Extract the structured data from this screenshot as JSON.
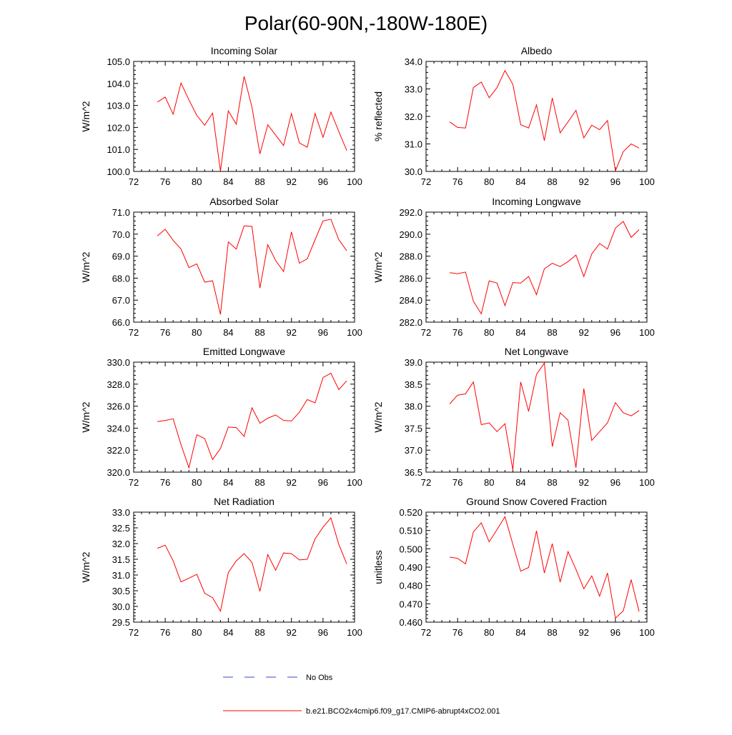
{
  "figure_title": "Polar(60-90N,-180W-180E)",
  "colors": {
    "series": "#ff0000",
    "obs": "#3344cc",
    "axis": "#000000"
  },
  "legend": [
    {
      "label": "No Obs",
      "style": "dashed",
      "color": "#3344cc"
    },
    {
      "label": "b.e21.BCO2x4cmip6.f09_g17.CMIP6-abrupt4xCO2.001",
      "style": "solid",
      "color": "#ff0000"
    }
  ],
  "chart_data": [
    {
      "type": "line",
      "title": "Incoming Solar",
      "ylabel": "W/m^2",
      "xlim": [
        72,
        100
      ],
      "ylim": [
        100,
        105
      ],
      "xticks": [
        72,
        76,
        80,
        84,
        88,
        92,
        96,
        100
      ],
      "yticks": [
        "100.0",
        "101.0",
        "102.0",
        "103.0",
        "104.0",
        "105.0"
      ],
      "x": [
        75,
        76,
        77,
        78,
        79,
        80,
        81,
        82,
        83,
        84,
        85,
        86,
        87,
        88,
        89,
        90,
        91,
        92,
        93,
        94,
        95,
        96,
        97,
        98,
        99
      ],
      "series": [
        {
          "name": "b.e21.BCO2x4cmip6.f09_g17.CMIP6-abrupt4xCO2.001",
          "values": [
            103.15,
            103.38,
            102.6,
            104.02,
            103.25,
            102.55,
            102.1,
            102.65,
            100.02,
            102.75,
            102.15,
            104.32,
            102.92,
            100.8,
            102.12,
            101.65,
            101.18,
            102.63,
            101.3,
            101.1,
            102.63,
            101.55,
            102.7,
            101.82,
            100.95
          ]
        }
      ]
    },
    {
      "type": "line",
      "title": "Albedo",
      "ylabel": "% reflected",
      "xlim": [
        72,
        100
      ],
      "ylim": [
        30,
        34
      ],
      "xticks": [
        72,
        76,
        80,
        84,
        88,
        92,
        96,
        100
      ],
      "yticks": [
        "30.0",
        "31.0",
        "32.0",
        "33.0",
        "34.0"
      ],
      "x": [
        75,
        76,
        77,
        78,
        79,
        80,
        81,
        82,
        83,
        84,
        85,
        86,
        87,
        88,
        89,
        90,
        91,
        92,
        93,
        94,
        95,
        96,
        97,
        98,
        99
      ],
      "series": [
        {
          "name": "b.e21.BCO2x4cmip6.f09_g17.CMIP6-abrupt4xCO2.001",
          "values": [
            31.8,
            31.6,
            31.58,
            33.05,
            33.25,
            32.68,
            33.05,
            33.67,
            33.17,
            31.7,
            31.58,
            32.42,
            31.12,
            32.67,
            31.4,
            31.8,
            32.22,
            31.22,
            31.68,
            31.52,
            31.85,
            30.02,
            30.72,
            31.0,
            30.85
          ]
        }
      ]
    },
    {
      "type": "line",
      "title": "Absorbed Solar",
      "ylabel": "W/m^2",
      "xlim": [
        72,
        100
      ],
      "ylim": [
        66,
        71
      ],
      "xticks": [
        72,
        76,
        80,
        84,
        88,
        92,
        96,
        100
      ],
      "yticks": [
        "66.0",
        "67.0",
        "68.0",
        "69.0",
        "70.0",
        "71.0"
      ],
      "x": [
        75,
        76,
        77,
        78,
        79,
        80,
        81,
        82,
        83,
        84,
        85,
        86,
        87,
        88,
        89,
        90,
        91,
        92,
        93,
        94,
        95,
        96,
        97,
        98,
        99
      ],
      "series": [
        {
          "name": "b.e21.BCO2x4cmip6.f09_g17.CMIP6-abrupt4xCO2.001",
          "values": [
            69.92,
            70.22,
            69.72,
            69.32,
            68.48,
            68.65,
            67.82,
            67.88,
            66.35,
            69.65,
            69.32,
            70.38,
            70.35,
            67.55,
            69.52,
            68.8,
            68.3,
            70.1,
            68.68,
            68.88,
            69.75,
            70.6,
            70.68,
            69.75,
            69.25
          ]
        }
      ]
    },
    {
      "type": "line",
      "title": "Incoming Longwave",
      "ylabel": "W/m^2",
      "xlim": [
        72,
        100
      ],
      "ylim": [
        282,
        292
      ],
      "xticks": [
        72,
        76,
        80,
        84,
        88,
        92,
        96,
        100
      ],
      "yticks": [
        "282.0",
        "284.0",
        "286.0",
        "288.0",
        "290.0",
        "292.0"
      ],
      "x": [
        75,
        76,
        77,
        78,
        79,
        80,
        81,
        82,
        83,
        84,
        85,
        86,
        87,
        88,
        89,
        90,
        91,
        92,
        93,
        94,
        95,
        96,
        97,
        98,
        99
      ],
      "series": [
        {
          "name": "b.e21.BCO2x4cmip6.f09_g17.CMIP6-abrupt4xCO2.001",
          "values": [
            286.5,
            286.4,
            286.55,
            283.9,
            282.75,
            285.75,
            285.55,
            283.5,
            285.6,
            285.55,
            286.15,
            284.5,
            286.85,
            287.35,
            287.05,
            287.5,
            288.1,
            286.15,
            288.2,
            289.15,
            288.65,
            290.55,
            291.15,
            289.7,
            290.4
          ]
        }
      ]
    },
    {
      "type": "line",
      "title": "Emitted Longwave",
      "ylabel": "W/m^2",
      "xlim": [
        72,
        100
      ],
      "ylim": [
        320,
        330
      ],
      "xticks": [
        72,
        76,
        80,
        84,
        88,
        92,
        96,
        100
      ],
      "yticks": [
        "320.0",
        "322.0",
        "324.0",
        "326.0",
        "328.0",
        "330.0"
      ],
      "x": [
        75,
        76,
        77,
        78,
        79,
        80,
        81,
        82,
        83,
        84,
        85,
        86,
        87,
        88,
        89,
        90,
        91,
        92,
        93,
        94,
        95,
        96,
        97,
        98,
        99
      ],
      "series": [
        {
          "name": "b.e21.BCO2x4cmip6.f09_g17.CMIP6-abrupt4xCO2.001",
          "values": [
            324.6,
            324.7,
            324.85,
            322.5,
            320.4,
            323.4,
            323.05,
            321.15,
            322.15,
            324.1,
            324.05,
            323.25,
            325.85,
            324.45,
            324.9,
            325.2,
            324.7,
            324.65,
            325.45,
            326.6,
            326.3,
            328.6,
            329.0,
            327.5,
            328.3
          ]
        }
      ]
    },
    {
      "type": "line",
      "title": "Net Longwave",
      "ylabel": "W/m^2",
      "xlim": [
        72,
        100
      ],
      "ylim": [
        36.5,
        39.0
      ],
      "xticks": [
        72,
        76,
        80,
        84,
        88,
        92,
        96,
        100
      ],
      "yticks": [
        "36.5",
        "37.0",
        "37.5",
        "38.0",
        "38.5",
        "39.0"
      ],
      "x": [
        75,
        76,
        77,
        78,
        79,
        80,
        81,
        82,
        83,
        84,
        85,
        86,
        87,
        88,
        89,
        90,
        91,
        92,
        93,
        94,
        95,
        96,
        97,
        98,
        99
      ],
      "series": [
        {
          "name": "b.e21.BCO2x4cmip6.f09_g17.CMIP6-abrupt4xCO2.001",
          "values": [
            38.05,
            38.25,
            38.28,
            38.55,
            37.58,
            37.62,
            37.42,
            37.6,
            36.55,
            38.55,
            37.88,
            38.72,
            38.98,
            37.08,
            37.85,
            37.68,
            36.6,
            38.4,
            37.22,
            37.42,
            37.62,
            38.08,
            37.85,
            37.78,
            37.9
          ]
        }
      ]
    },
    {
      "type": "line",
      "title": "Net Radiation",
      "ylabel": "W/m^2",
      "xlim": [
        72,
        100
      ],
      "ylim": [
        29.5,
        33.0
      ],
      "xticks": [
        72,
        76,
        80,
        84,
        88,
        92,
        96,
        100
      ],
      "yticks": [
        "29.5",
        "30.0",
        "30.5",
        "31.0",
        "31.5",
        "32.0",
        "32.5",
        "33.0"
      ],
      "x": [
        75,
        76,
        77,
        78,
        79,
        80,
        81,
        82,
        83,
        84,
        85,
        86,
        87,
        88,
        89,
        90,
        91,
        92,
        93,
        94,
        95,
        96,
        97,
        98,
        99
      ],
      "series": [
        {
          "name": "b.e21.BCO2x4cmip6.f09_g17.CMIP6-abrupt4xCO2.001",
          "values": [
            31.85,
            31.95,
            31.45,
            30.78,
            30.9,
            31.02,
            30.42,
            30.28,
            29.85,
            31.08,
            31.45,
            31.68,
            31.4,
            30.48,
            31.65,
            31.15,
            31.7,
            31.68,
            31.48,
            31.5,
            32.15,
            32.52,
            32.82,
            31.98,
            31.35
          ]
        }
      ]
    },
    {
      "type": "line",
      "title": "Ground Snow Covered Fraction",
      "ylabel": "unitless",
      "xlim": [
        72,
        100
      ],
      "ylim": [
        0.46,
        0.52
      ],
      "xticks": [
        72,
        76,
        80,
        84,
        88,
        92,
        96,
        100
      ],
      "yticks": [
        "0.460",
        "0.470",
        "0.480",
        "0.490",
        "0.500",
        "0.510",
        "0.520"
      ],
      "x": [
        75,
        76,
        77,
        78,
        79,
        80,
        81,
        82,
        83,
        84,
        85,
        86,
        87,
        88,
        89,
        90,
        91,
        92,
        93,
        94,
        95,
        96,
        97,
        98,
        99
      ],
      "series": [
        {
          "name": "b.e21.BCO2x4cmip6.f09_g17.CMIP6-abrupt4xCO2.001",
          "values": [
            0.4955,
            0.4948,
            0.4918,
            0.5092,
            0.5142,
            0.5038,
            0.5105,
            0.5175,
            0.5025,
            0.4878,
            0.4898,
            0.5098,
            0.4868,
            0.5028,
            0.4818,
            0.4985,
            0.4888,
            0.4782,
            0.4852,
            0.4742,
            0.4868,
            0.4622,
            0.4662,
            0.4832,
            0.4658
          ]
        }
      ]
    }
  ]
}
